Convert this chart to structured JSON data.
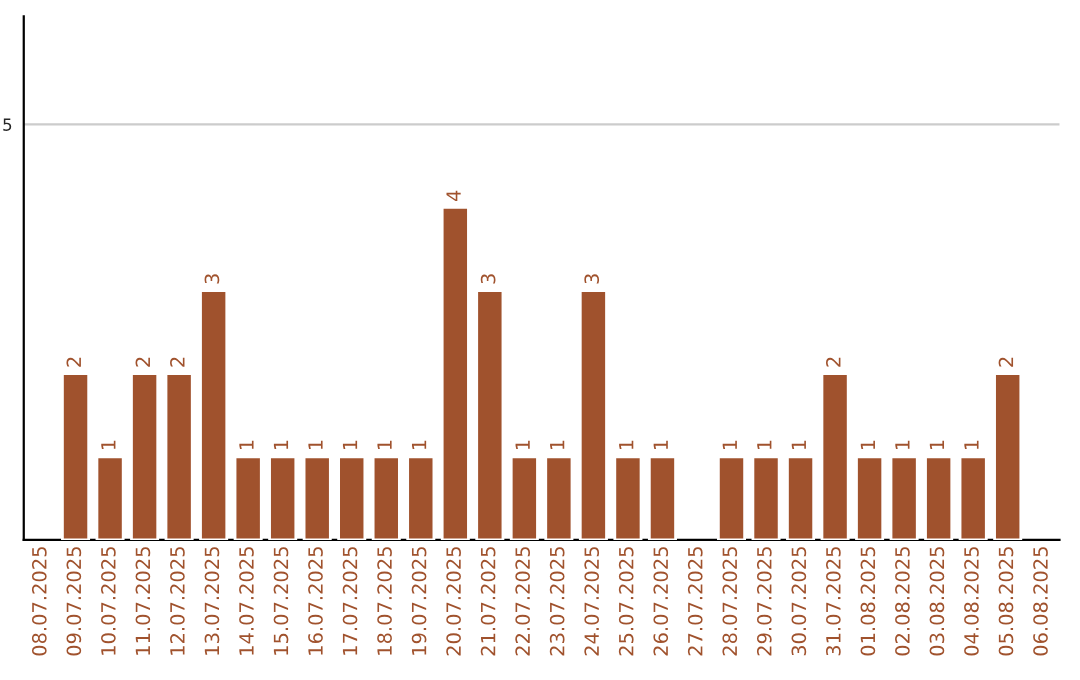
{
  "chart_data": {
    "type": "bar",
    "categories": [
      "08.07.2025",
      "09.07.2025",
      "10.07.2025",
      "11.07.2025",
      "12.07.2025",
      "13.07.2025",
      "14.07.2025",
      "15.07.2025",
      "16.07.2025",
      "17.07.2025",
      "18.07.2025",
      "19.07.2025",
      "20.07.2025",
      "21.07.2025",
      "22.07.2025",
      "23.07.2025",
      "24.07.2025",
      "25.07.2025",
      "26.07.2025",
      "27.07.2025",
      "28.07.2025",
      "29.07.2025",
      "30.07.2025",
      "31.07.2025",
      "01.08.2025",
      "02.08.2025",
      "03.08.2025",
      "04.08.2025",
      "05.08.2025",
      "06.08.2025"
    ],
    "values": [
      null,
      2,
      1,
      2,
      2,
      3,
      1,
      1,
      1,
      1,
      1,
      1,
      4,
      3,
      1,
      1,
      3,
      1,
      1,
      null,
      1,
      1,
      1,
      2,
      1,
      1,
      1,
      1,
      2,
      null
    ],
    "color": "#a0522d",
    "ylim": [
      0,
      6.3
    ],
    "yticks": [
      5
    ],
    "grid": "y",
    "data_labels": true
  }
}
